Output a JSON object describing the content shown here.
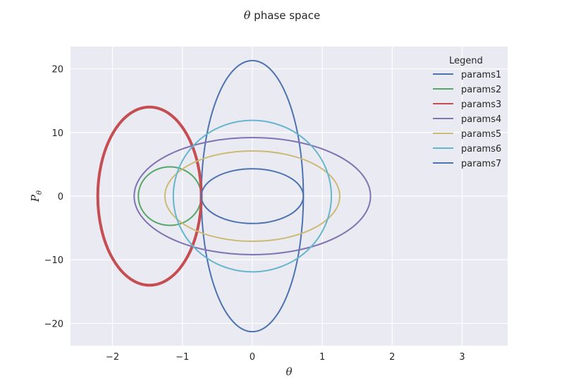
{
  "chart_data": {
    "type": "line",
    "title": "θ phase space",
    "title_symbol": "θ",
    "title_rest": " phase space",
    "xlabel": "θ",
    "ylabel": "P",
    "ylabel_sub": "θ",
    "xlim": [
      -2.6,
      3.65
    ],
    "ylim": [
      -23.5,
      23.5
    ],
    "xticks": [
      -2,
      -1,
      0,
      1,
      2,
      3
    ],
    "yticks": [
      -20,
      -10,
      0,
      10,
      20
    ],
    "xtick_labels": [
      "−2",
      "−1",
      "0",
      "1",
      "2",
      "3"
    ],
    "ytick_labels": [
      "−20",
      "−10",
      "0",
      "10",
      "20"
    ],
    "grid": true,
    "legend": {
      "title": "Legend",
      "placement": "top-right"
    },
    "series": [
      {
        "name": "params1",
        "color": "#4c72b0",
        "center_x": 0,
        "center_y": 0,
        "half_width": 0.73,
        "half_height": 21.3,
        "stroke": 2
      },
      {
        "name": "params2",
        "color": "#55a868",
        "center_x": -1.18,
        "center_y": 0,
        "half_width": 0.45,
        "half_height": 4.6,
        "stroke": 2
      },
      {
        "name": "params3",
        "color": "#c44e52",
        "center_x": -1.47,
        "center_y": 0,
        "half_width": 0.74,
        "half_height": 14.0,
        "stroke": 4
      },
      {
        "name": "params4",
        "color": "#8172b2",
        "center_x": 0,
        "center_y": 0,
        "half_width": 1.69,
        "half_height": 9.2,
        "stroke": 2
      },
      {
        "name": "params5",
        "color": "#ccb974",
        "center_x": 0,
        "center_y": 0,
        "half_width": 1.25,
        "half_height": 7.1,
        "stroke": 2
      },
      {
        "name": "params6",
        "color": "#64b5cd",
        "center_x": 0,
        "center_y": 0,
        "half_width": 1.13,
        "half_height": 11.9,
        "stroke": 2
      },
      {
        "name": "params7",
        "color": "#4c72b0",
        "center_x": 0,
        "center_y": 0,
        "half_width": 0.73,
        "half_height": 4.3,
        "stroke": 2
      }
    ]
  }
}
